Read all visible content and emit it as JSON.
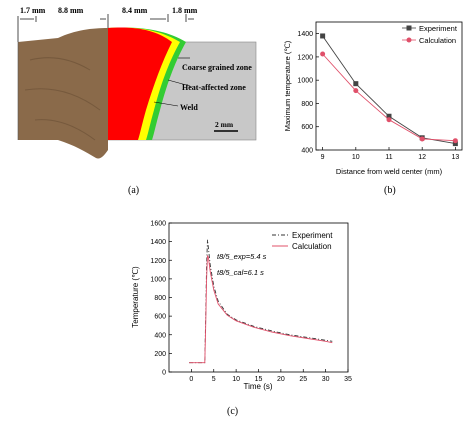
{
  "panel_a": {
    "label": "(a)",
    "dims": [
      "1.7 mm",
      "8.8 mm",
      "8.4 mm",
      "1.8 mm"
    ],
    "zones": [
      "Coarse grained zone",
      "Heat-affected zone",
      "Weld"
    ],
    "scale_bar": "2 mm",
    "colors": {
      "weld": "#ff0000",
      "haz": "#ffff00",
      "cgz": "#33cc33",
      "base": "#c8c8c8",
      "metal": "#8a6a4a"
    }
  },
  "panel_b": {
    "label": "(b)"
  },
  "panel_c": {
    "label": "(c)",
    "annotations": [
      "t8/5_exp=5.4 s",
      "t8/5_cal=6.1 s"
    ]
  },
  "chart_data": [
    {
      "type": "line",
      "xlabel": "Distance from weld center (mm)",
      "ylabel": "Maximum temperature (℃)",
      "xlim": [
        8.8,
        13.2
      ],
      "ylim": [
        400,
        1500
      ],
      "xticks": [
        9,
        10,
        11,
        12,
        13
      ],
      "yticks": [
        400,
        600,
        800,
        1000,
        1200,
        1400
      ],
      "legend": "top-right",
      "series": [
        {
          "name": "Experiment",
          "color": "#444444",
          "marker": "square",
          "x": [
            9,
            10,
            11,
            12,
            13
          ],
          "y": [
            1380,
            970,
            690,
            505,
            455
          ]
        },
        {
          "name": "Calculation",
          "color": "#e0506a",
          "marker": "circle",
          "x": [
            9,
            10,
            11,
            12,
            13
          ],
          "y": [
            1225,
            910,
            660,
            495,
            480
          ]
        }
      ]
    },
    {
      "type": "line",
      "xlabel": "Time (s)",
      "ylabel": "Temperature (℃)",
      "xlim": [
        -5,
        35
      ],
      "ylim": [
        0,
        1600
      ],
      "xticks": [
        0,
        5,
        10,
        15,
        20,
        25,
        30,
        35
      ],
      "yticks": [
        0,
        200,
        400,
        600,
        800,
        1000,
        1200,
        1400,
        1600
      ],
      "legend": "top-right",
      "series": [
        {
          "name": "Experiment",
          "color": "#333333",
          "dash": "dash-dot",
          "x": [
            -0.5,
            3.0,
            3.2,
            3.4,
            3.6,
            3.8,
            4.2,
            5,
            6,
            8,
            10,
            14,
            18,
            22,
            26,
            30,
            31.5
          ],
          "y": [
            100,
            100,
            600,
            1150,
            1420,
            1330,
            1150,
            920,
            760,
            620,
            560,
            490,
            440,
            400,
            370,
            340,
            330
          ]
        },
        {
          "name": "Calculation",
          "color": "#e0506a",
          "dash": "solid",
          "x": [
            -0.5,
            3.0,
            3.2,
            3.4,
            3.6,
            3.8,
            4.2,
            5,
            6,
            8,
            10,
            14,
            18,
            22,
            26,
            30,
            31.5
          ],
          "y": [
            100,
            100,
            500,
            1000,
            1250,
            1230,
            1080,
            880,
            730,
            610,
            550,
            480,
            430,
            390,
            360,
            330,
            315
          ]
        }
      ]
    }
  ]
}
